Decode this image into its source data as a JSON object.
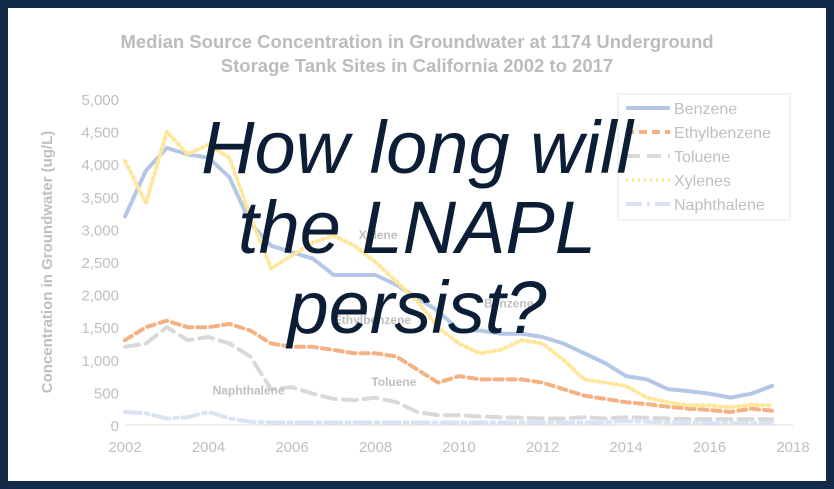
{
  "overlay": {
    "lines": [
      "How long will",
      "the LNAPL",
      "persist?"
    ]
  },
  "colors": {
    "background_border": "#132a48",
    "overlay_text": "#0b1e35",
    "axis_text": "#bfbfbf",
    "title_text": "#bcbcbc"
  },
  "chart_data": {
    "type": "line",
    "title_lines": [
      "Median Source Concentration in Groundwater at 1174 Underground",
      "Storage Tank Sites in California 2002 to 2017"
    ],
    "xlabel": "",
    "ylabel": "Concentration in Groundwater (ug/L)",
    "xlim": [
      2002,
      2018
    ],
    "ylim": [
      0,
      5000
    ],
    "xticks": [
      2002,
      2004,
      2006,
      2008,
      2010,
      2012,
      2014,
      2016,
      2018
    ],
    "xtick_labels": [
      "2002",
      "2004",
      "2006",
      "2008",
      "2010",
      "2012",
      "2014",
      "2016",
      "2018"
    ],
    "yticks": [
      0,
      500,
      1000,
      1500,
      2000,
      2500,
      3000,
      3500,
      4000,
      4500,
      5000
    ],
    "ytick_labels": [
      "0",
      "500",
      "1,000",
      "1,500",
      "2,000",
      "2,500",
      "3,000",
      "3,500",
      "4,000",
      "4,500",
      "5,000"
    ],
    "grid": false,
    "legend_position": "top-right",
    "series": [
      {
        "name": "Benzene",
        "color": "#b4c7e7",
        "dash": "solid",
        "x": [
          2002,
          2002.5,
          2003,
          2003.5,
          2004,
          2004.5,
          2005,
          2005.5,
          2006,
          2006.5,
          2007,
          2007.5,
          2008,
          2008.5,
          2009,
          2009.5,
          2010,
          2010.5,
          2011,
          2011.5,
          2012,
          2012.5,
          2013,
          2013.5,
          2014,
          2014.5,
          2015,
          2015.5,
          2016,
          2016.5,
          2017,
          2017.5
        ],
        "values": [
          3200,
          3900,
          4250,
          4150,
          4100,
          3800,
          3100,
          2750,
          2650,
          2550,
          2300,
          2300,
          2300,
          2150,
          1950,
          1750,
          1450,
          1450,
          1400,
          1400,
          1350,
          1250,
          1100,
          950,
          750,
          700,
          550,
          520,
          480,
          420,
          480,
          600
        ]
      },
      {
        "name": "Ethylbenzene",
        "color": "#f4b183",
        "dash": "8,5",
        "x": [
          2002,
          2002.5,
          2003,
          2003.5,
          2004,
          2004.5,
          2005,
          2005.5,
          2006,
          2006.5,
          2007,
          2007.5,
          2008,
          2008.5,
          2009,
          2009.5,
          2010,
          2010.5,
          2011,
          2011.5,
          2012,
          2012.5,
          2013,
          2013.5,
          2014,
          2014.5,
          2015,
          2015.5,
          2016,
          2016.5,
          2017,
          2017.5
        ],
        "values": [
          1300,
          1500,
          1600,
          1500,
          1500,
          1550,
          1450,
          1250,
          1200,
          1200,
          1150,
          1100,
          1100,
          1050,
          850,
          650,
          750,
          700,
          700,
          700,
          650,
          550,
          450,
          400,
          350,
          320,
          280,
          250,
          230,
          200,
          250,
          220
        ]
      },
      {
        "name": "Toluene",
        "color": "#d9d9d9",
        "dash": "14,7",
        "x": [
          2002,
          2002.5,
          2003,
          2003.5,
          2004,
          2004.5,
          2005,
          2005.5,
          2006,
          2006.5,
          2007,
          2007.5,
          2008,
          2008.5,
          2009,
          2009.5,
          2010,
          2010.5,
          2011,
          2011.5,
          2012,
          2012.5,
          2013,
          2013.5,
          2014,
          2014.5,
          2015,
          2015.5,
          2016,
          2016.5,
          2017,
          2017.5
        ],
        "values": [
          1200,
          1250,
          1500,
          1300,
          1350,
          1250,
          1050,
          550,
          580,
          480,
          400,
          380,
          420,
          350,
          200,
          150,
          150,
          130,
          120,
          110,
          100,
          100,
          120,
          100,
          120,
          110,
          100,
          90,
          90,
          90,
          90,
          90
        ]
      },
      {
        "name": "Xylenes",
        "color": "#ffe699",
        "dash": "2,4",
        "x": [
          2002,
          2002.5,
          2003,
          2003.5,
          2004,
          2004.5,
          2005,
          2005.5,
          2006,
          2006.5,
          2007,
          2007.5,
          2008,
          2008.5,
          2009,
          2009.5,
          2010,
          2010.5,
          2011,
          2011.5,
          2012,
          2012.5,
          2013,
          2013.5,
          2014,
          2014.5,
          2015,
          2015.5,
          2016,
          2016.5,
          2017,
          2017.5
        ],
        "values": [
          4050,
          3400,
          4500,
          4150,
          4300,
          4100,
          3200,
          2400,
          2600,
          2800,
          2900,
          2750,
          2500,
          2200,
          1900,
          1500,
          1250,
          1100,
          1150,
          1300,
          1250,
          1000,
          700,
          650,
          600,
          420,
          350,
          300,
          300,
          270,
          310,
          300
        ]
      },
      {
        "name": "Naphthalene",
        "color": "#dae3f3",
        "dash": "16,5,3,5",
        "x": [
          2002,
          2002.5,
          2003,
          2003.5,
          2004,
          2004.5,
          2005,
          2005.5,
          2006,
          2006.5,
          2007,
          2007.5,
          2008,
          2008.5,
          2009,
          2009.5,
          2010,
          2010.5,
          2011,
          2011.5,
          2012,
          2012.5,
          2013,
          2013.5,
          2014,
          2014.5,
          2015,
          2015.5,
          2016,
          2016.5,
          2017,
          2017.5
        ],
        "values": [
          200,
          180,
          100,
          120,
          200,
          100,
          50,
          40,
          40,
          40,
          40,
          40,
          40,
          40,
          40,
          40,
          40,
          40,
          40,
          40,
          40,
          40,
          40,
          40,
          60,
          50,
          40,
          40,
          30,
          30,
          30,
          30
        ]
      }
    ],
    "annotations": [
      {
        "text": "Xylene",
        "x": 2007.6,
        "y": 2850
      },
      {
        "text": "Ethylbenzene",
        "x": 2007.0,
        "y": 1550
      },
      {
        "text": "Benzene",
        "x": 2010.6,
        "y": 1800
      },
      {
        "text": "Toluene",
        "x": 2007.9,
        "y": 600
      },
      {
        "text": "Naphthalene",
        "x": 2004.1,
        "y": 470
      }
    ]
  }
}
